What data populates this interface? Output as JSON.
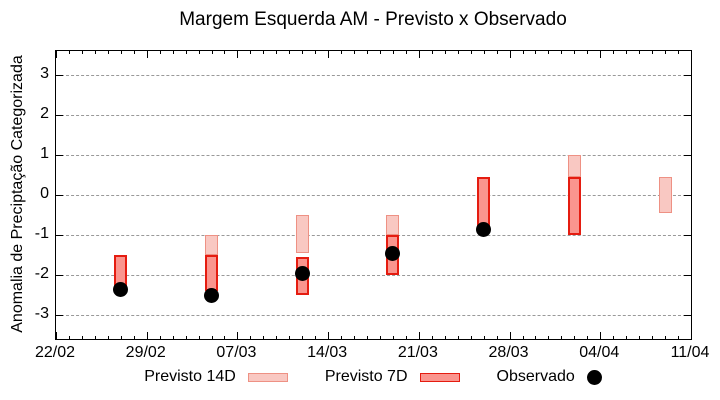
{
  "chart_data": {
    "type": "bar",
    "subtype": "floating-range-bars-with-scatter",
    "title": "Margem Esquerda AM - Previsto x Observado",
    "ylabel": "Anomalia de Preciptação Categorizada",
    "xlabel": "",
    "ylim": [
      -3.6,
      3.6
    ],
    "yticks": [
      3,
      2,
      1,
      0,
      -1,
      -2,
      -3
    ],
    "xticks": [
      "22/02",
      "29/02",
      "07/03",
      "14/03",
      "21/03",
      "28/03",
      "04/04",
      "11/04"
    ],
    "x_axis": {
      "total_days": 49,
      "days_per_major_tick": 7
    },
    "grid": {
      "horizontal": true,
      "vertical": false,
      "style": "dashed",
      "color": "#999999"
    },
    "colors": {
      "previsto14d_fill": "#f9c8c2",
      "previsto14d_border": "#ee9184",
      "previsto7d_fill": "#fa958e",
      "previsto7d_border": "#e51c10",
      "observado": "#000000"
    },
    "legend": [
      {
        "label": "Previsto 14D",
        "swatch": "box-light-pink"
      },
      {
        "label": "Previsto 7D",
        "swatch": "box-red"
      },
      {
        "label": "Observado",
        "swatch": "dot-black"
      }
    ],
    "series": [
      {
        "name": "Previsto 14D",
        "type": "range-bar",
        "bars": [
          {
            "day": 12,
            "high": -1.0,
            "low": -1.5
          },
          {
            "day": 19,
            "high": -0.5,
            "low": -1.45
          },
          {
            "day": 26,
            "high": -0.5,
            "low": -1.0
          },
          {
            "day": 40,
            "high": 1.0,
            "low": 0.45
          },
          {
            "day": 47,
            "high": 0.45,
            "low": -0.45
          }
        ]
      },
      {
        "name": "Previsto 7D",
        "type": "range-bar",
        "bars": [
          {
            "day": 5,
            "high": -1.5,
            "low": -2.3
          },
          {
            "day": 12,
            "high": -1.5,
            "low": -2.4
          },
          {
            "day": 19,
            "high": -1.55,
            "low": -2.5
          },
          {
            "day": 26,
            "high": -1.0,
            "low": -2.0
          },
          {
            "day": 33,
            "high": 0.45,
            "low": -0.9
          },
          {
            "day": 40,
            "high": 0.45,
            "low": -1.0
          }
        ]
      },
      {
        "name": "Observado",
        "type": "scatter",
        "points": [
          {
            "day": 5,
            "value": -2.35
          },
          {
            "day": 12,
            "value": -2.5
          },
          {
            "day": 19,
            "value": -1.95
          },
          {
            "day": 26,
            "value": -1.45
          },
          {
            "day": 33,
            "value": -0.85
          }
        ]
      }
    ]
  }
}
